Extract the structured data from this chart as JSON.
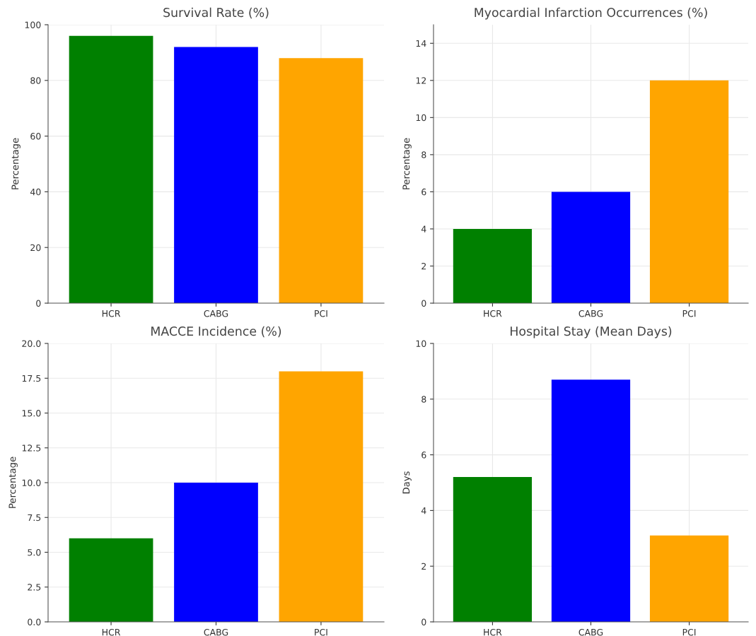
{
  "chart_data": [
    {
      "type": "bar",
      "title": "Survival Rate (%)",
      "ylabel": "Percentage",
      "categories": [
        "HCR",
        "CABG",
        "PCI"
      ],
      "values": [
        96,
        92,
        88
      ],
      "colors": [
        "#008000",
        "#0000ff",
        "#ffa500"
      ],
      "ylim": [
        0,
        100
      ],
      "yticks": [
        0,
        20,
        40,
        60,
        80,
        100
      ],
      "grid": true
    },
    {
      "type": "bar",
      "title": "Myocardial Infarction Occurrences (%)",
      "ylabel": "Percentage",
      "categories": [
        "HCR",
        "CABG",
        "PCI"
      ],
      "values": [
        4,
        6,
        12
      ],
      "colors": [
        "#008000",
        "#0000ff",
        "#ffa500"
      ],
      "ylim": [
        0,
        15
      ],
      "yticks": [
        0,
        2,
        4,
        6,
        8,
        10,
        12,
        14
      ],
      "grid": true
    },
    {
      "type": "bar",
      "title": "MACCE Incidence (%)",
      "ylabel": "Percentage",
      "categories": [
        "HCR",
        "CABG",
        "PCI"
      ],
      "values": [
        6,
        10,
        18
      ],
      "colors": [
        "#008000",
        "#0000ff",
        "#ffa500"
      ],
      "ylim": [
        0,
        20
      ],
      "yticks": [
        {
          "value": 0,
          "label": "0.0"
        },
        {
          "value": 2.5,
          "label": "2.5"
        },
        {
          "value": 5,
          "label": "5.0"
        },
        {
          "value": 7.5,
          "label": "7.5"
        },
        {
          "value": 10,
          "label": "10.0"
        },
        {
          "value": 12.5,
          "label": "12.5"
        },
        {
          "value": 15,
          "label": "15.0"
        },
        {
          "value": 17.5,
          "label": "17.5"
        },
        {
          "value": 20,
          "label": "20.0"
        }
      ],
      "grid": true
    },
    {
      "type": "bar",
      "title": "Hospital Stay (Mean Days)",
      "ylabel": "Days",
      "categories": [
        "HCR",
        "CABG",
        "PCI"
      ],
      "values": [
        5.2,
        8.7,
        3.1
      ],
      "colors": [
        "#008000",
        "#0000ff",
        "#ffa500"
      ],
      "ylim": [
        0,
        10
      ],
      "yticks": [
        0,
        2,
        4,
        6,
        8,
        10
      ],
      "grid": true
    }
  ]
}
